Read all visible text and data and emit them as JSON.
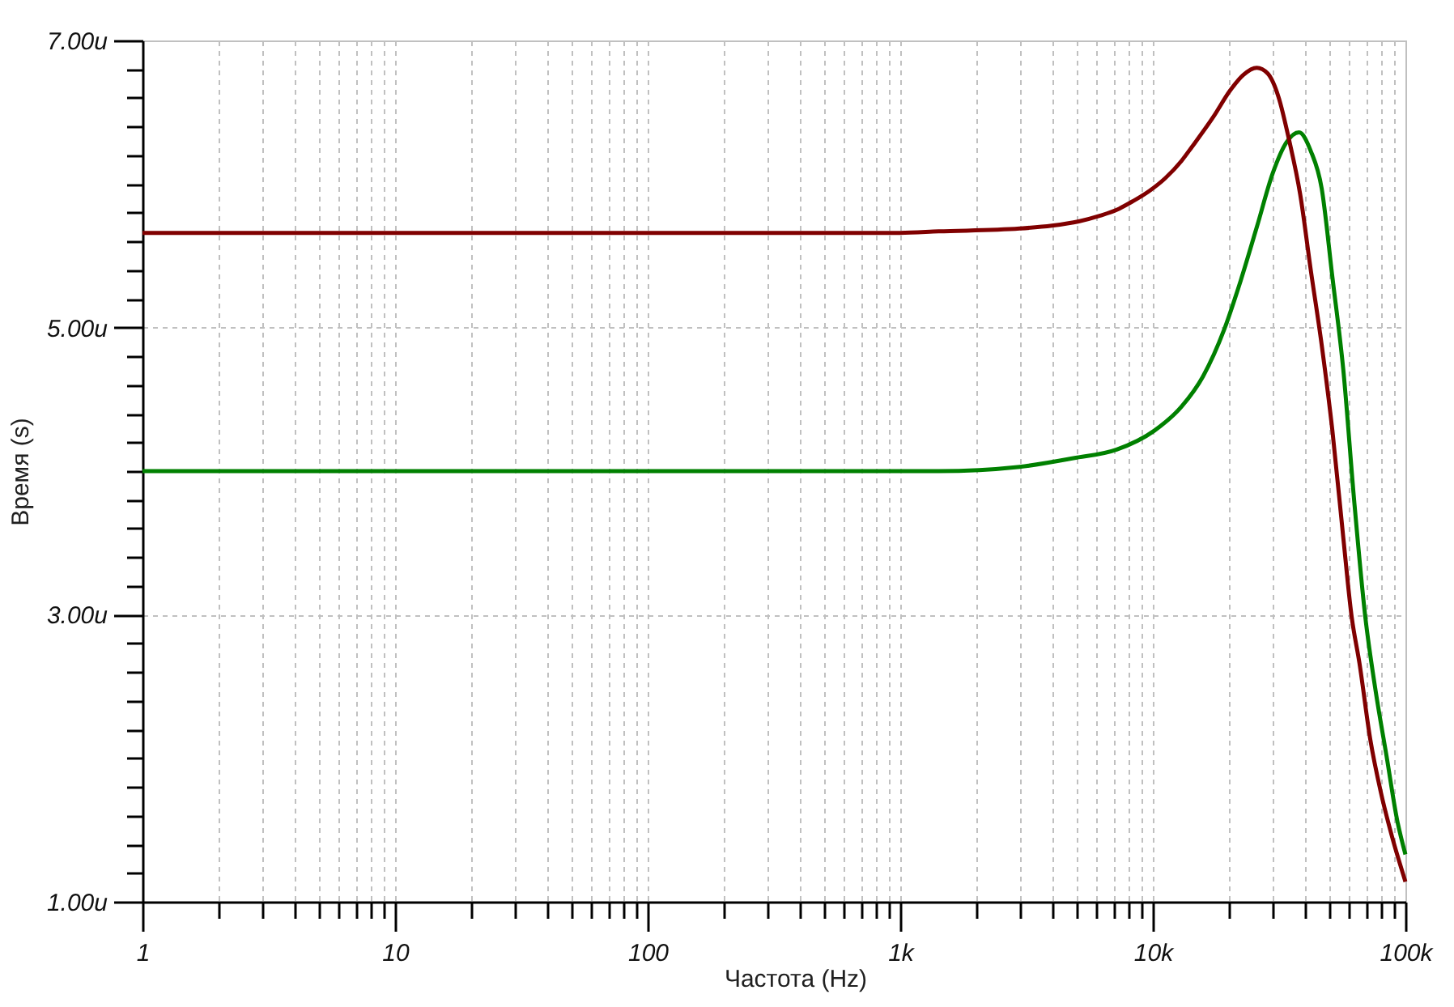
{
  "chart_data": {
    "type": "line",
    "xlabel": "Частота (Hz)",
    "ylabel": "Время (s)",
    "series": [
      {
        "color": "#008000",
        "x": [
          1,
          10,
          100,
          1000,
          1420,
          2970,
          4850,
          7190,
          10100,
          13000,
          15800,
          19200,
          22300,
          25800,
          29900,
          33800,
          37900,
          42200,
          46600,
          51400,
          56800,
          62700,
          69200,
          76200,
          84100,
          92700,
          100000
        ],
        "values": [
          4.0,
          4.0,
          4.0,
          4.0,
          4.0,
          4.03,
          4.09,
          4.15,
          4.28,
          4.45,
          4.66,
          4.99,
          5.33,
          5.7,
          6.08,
          6.29,
          6.36,
          6.23,
          5.97,
          5.35,
          4.7,
          3.79,
          3.0,
          2.47,
          2.02,
          1.57,
          1.33
        ]
      },
      {
        "color": "#800000",
        "x": [
          1,
          10,
          100,
          1000,
          1420,
          2970,
          3980,
          5090,
          6190,
          7190,
          8330,
          9650,
          11190,
          12970,
          14300,
          17400,
          20200,
          22800,
          25800,
          28500,
          31400,
          34700,
          38300,
          42200,
          46600,
          51400,
          56800,
          61100,
          65800,
          72600,
          80000,
          88300,
          100000
        ],
        "values": [
          5.66,
          5.66,
          5.66,
          5.66,
          5.67,
          5.69,
          5.71,
          5.74,
          5.78,
          5.82,
          5.88,
          5.95,
          6.04,
          6.16,
          6.26,
          6.47,
          6.65,
          6.76,
          6.81,
          6.77,
          6.61,
          6.3,
          5.93,
          5.4,
          4.88,
          4.28,
          3.53,
          3.0,
          2.66,
          2.13,
          1.76,
          1.46,
          1.14
        ]
      }
    ],
    "xlim": [
      1,
      100000
    ],
    "ylim": [
      1,
      7
    ],
    "log": "x",
    "xticks": [
      1,
      {
        "value": 2,
        "label": null
      },
      {
        "value": 3,
        "label": null
      },
      {
        "value": 4,
        "label": null
      },
      {
        "value": 5,
        "label": null
      },
      {
        "value": 6,
        "label": null
      },
      {
        "value": 7,
        "label": null
      },
      {
        "value": 8,
        "label": null
      },
      {
        "value": 9,
        "label": null
      },
      10,
      {
        "value": 20,
        "label": null
      },
      {
        "value": 30,
        "label": null
      },
      {
        "value": 40,
        "label": null
      },
      {
        "value": 50,
        "label": null
      },
      {
        "value": 60,
        "label": null
      },
      {
        "value": 70,
        "label": null
      },
      {
        "value": 80,
        "label": null
      },
      {
        "value": 90,
        "label": null
      },
      100,
      {
        "value": 200,
        "label": null
      },
      {
        "value": 300,
        "label": null
      },
      {
        "value": 400,
        "label": null
      },
      {
        "value": 500,
        "label": null
      },
      {
        "value": 600,
        "label": null
      },
      {
        "value": 700,
        "label": null
      },
      {
        "value": 800,
        "label": null
      },
      {
        "value": 900,
        "label": null
      },
      {
        "value": 1000,
        "label": "1k"
      },
      {
        "value": 2000,
        "label": null
      },
      {
        "value": 3000,
        "label": null
      },
      {
        "value": 4000,
        "label": null
      },
      {
        "value": 5000,
        "label": null
      },
      {
        "value": 6000,
        "label": null
      },
      {
        "value": 7000,
        "label": null
      },
      {
        "value": 8000,
        "label": null
      },
      {
        "value": 9000,
        "label": null
      },
      {
        "value": 10000,
        "label": "10k"
      },
      {
        "value": 20000,
        "label": null
      },
      {
        "value": 30000,
        "label": null
      },
      {
        "value": 40000,
        "label": null
      },
      {
        "value": 50000,
        "label": null
      },
      {
        "value": 60000,
        "label": null
      },
      {
        "value": 70000,
        "label": null
      },
      {
        "value": 80000,
        "label": null
      },
      {
        "value": 90000,
        "label": null
      },
      {
        "value": 100000,
        "label": "100k"
      }
    ],
    "yticks": [
      {
        "value": 1,
        "label": "1.00u"
      },
      {
        "value": 1.2,
        "label": null
      },
      {
        "value": 1.4,
        "label": null
      },
      {
        "value": 1.6,
        "label": null
      },
      {
        "value": 1.8,
        "label": null
      },
      {
        "value": 2,
        "label": null
      },
      {
        "value": 2.2,
        "label": null
      },
      {
        "value": 2.4,
        "label": null
      },
      {
        "value": 2.6,
        "label": null
      },
      {
        "value": 2.8,
        "label": null
      },
      {
        "value": 3,
        "label": "3.00u"
      },
      {
        "value": 3.2,
        "label": null
      },
      {
        "value": 3.4,
        "label": null
      },
      {
        "value": 3.6,
        "label": null
      },
      {
        "value": 3.8,
        "label": null
      },
      {
        "value": 4,
        "label": null
      },
      {
        "value": 4.2,
        "label": null
      },
      {
        "value": 4.4,
        "label": null
      },
      {
        "value": 4.6,
        "label": null
      },
      {
        "value": 4.8,
        "label": null
      },
      {
        "value": 5,
        "label": "5.00u"
      },
      {
        "value": 5.2,
        "label": null
      },
      {
        "value": 5.4,
        "label": null
      },
      {
        "value": 5.6,
        "label": null
      },
      {
        "value": 5.8,
        "label": null
      },
      {
        "value": 6,
        "label": null
      },
      {
        "value": 6.2,
        "label": null
      },
      {
        "value": 6.4,
        "label": null
      },
      {
        "value": 6.6,
        "label": null
      },
      {
        "value": 6.8,
        "label": null
      },
      {
        "value": 7,
        "label": "7.00u"
      }
    ],
    "grid": true,
    "marker": "none",
    "line_style": "solid"
  }
}
